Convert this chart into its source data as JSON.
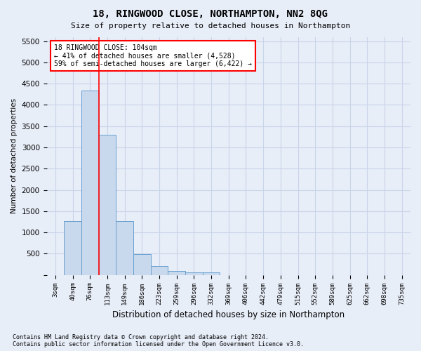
{
  "title": "18, RINGWOOD CLOSE, NORTHAMPTON, NN2 8QG",
  "subtitle": "Size of property relative to detached houses in Northampton",
  "xlabel": "Distribution of detached houses by size in Northampton",
  "ylabel": "Number of detached properties",
  "bar_color": "#c8d9ed",
  "bar_edge_color": "#6aa0d0",
  "grid_color": "#c8d4e8",
  "vline_color": "red",
  "vline_x_index": 2.5,
  "annotation_text_line1": "18 RINGWOOD CLOSE: 104sqm",
  "annotation_text_line2": "← 41% of detached houses are smaller (4,528)",
  "annotation_text_line3": "59% of semi-detached houses are larger (6,422) →",
  "categories": [
    "3sqm",
    "40sqm",
    "76sqm",
    "113sqm",
    "149sqm",
    "186sqm",
    "223sqm",
    "259sqm",
    "296sqm",
    "332sqm",
    "369sqm",
    "406sqm",
    "442sqm",
    "479sqm",
    "515sqm",
    "552sqm",
    "589sqm",
    "625sqm",
    "662sqm",
    "698sqm",
    "735sqm"
  ],
  "values": [
    0,
    1260,
    4340,
    3300,
    1260,
    490,
    210,
    95,
    60,
    60,
    0,
    0,
    0,
    0,
    0,
    0,
    0,
    0,
    0,
    0,
    0
  ],
  "ylim": [
    0,
    5600
  ],
  "yticks": [
    0,
    500,
    1000,
    1500,
    2000,
    2500,
    3000,
    3500,
    4000,
    4500,
    5000,
    5500
  ],
  "footnote": "Contains HM Land Registry data © Crown copyright and database right 2024.\nContains public sector information licensed under the Open Government Licence v3.0.",
  "bg_color": "#e8eef8",
  "plot_bg_color": "#e8eef8"
}
